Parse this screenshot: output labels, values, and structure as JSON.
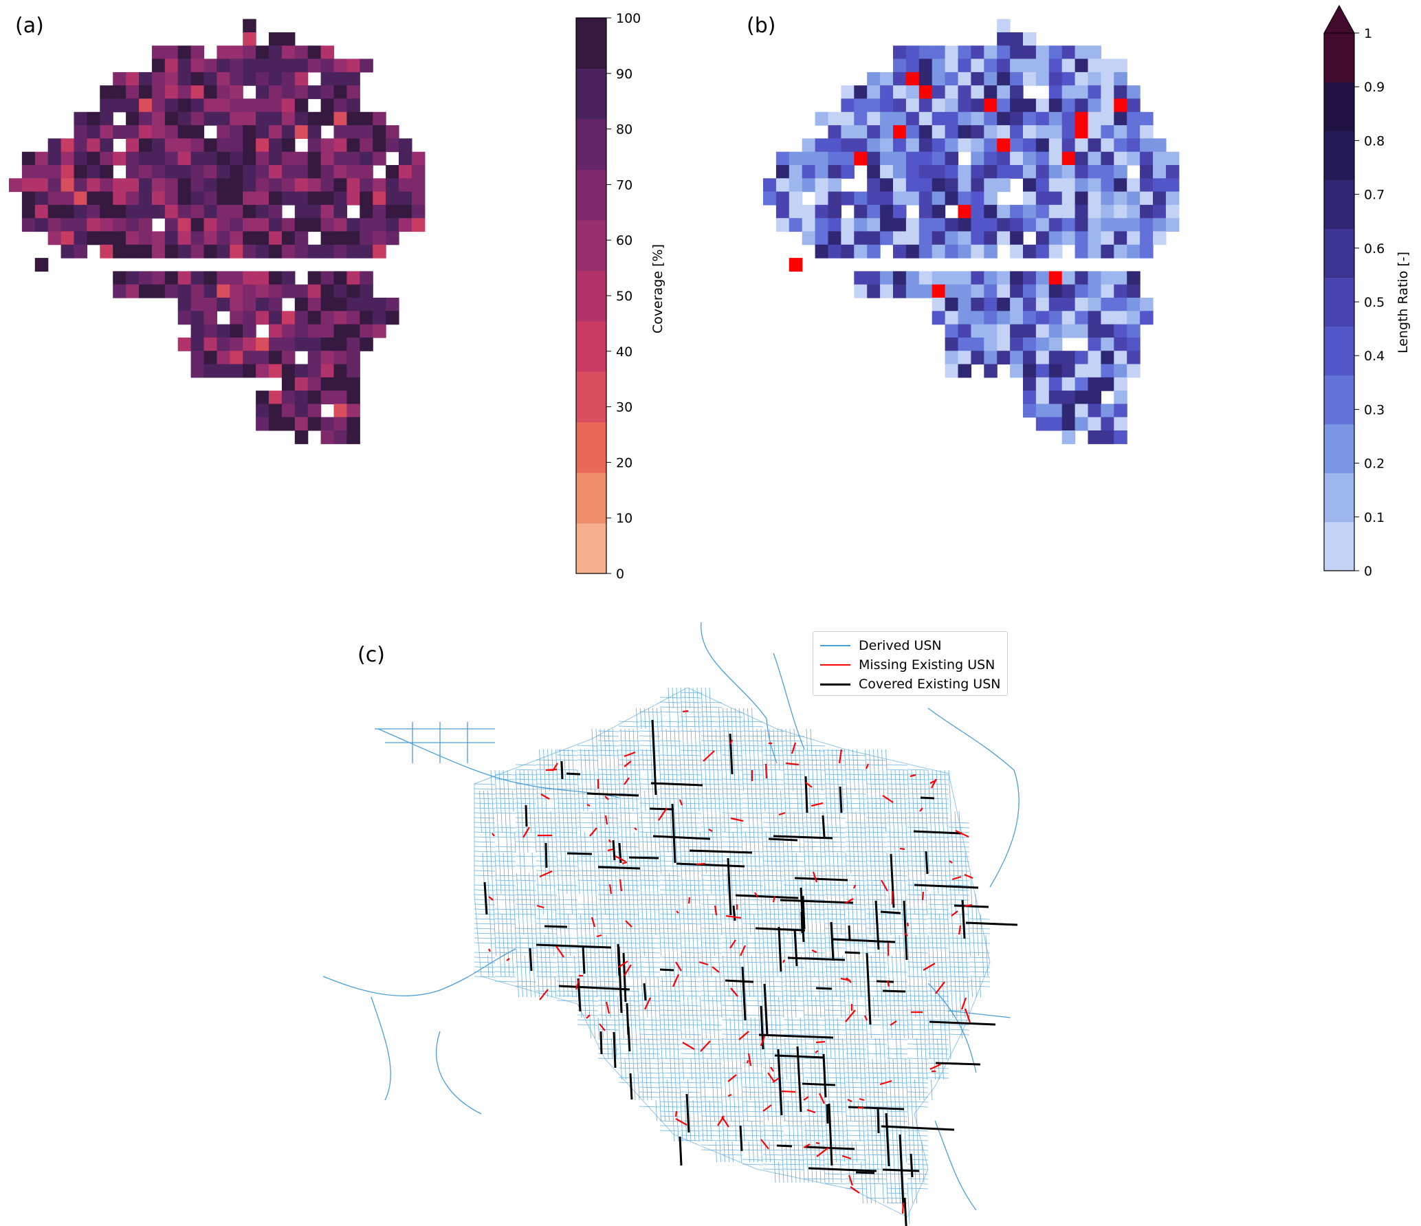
{
  "panels": {
    "a": {
      "label": "(a)"
    },
    "b": {
      "label": "(b)"
    },
    "c": {
      "label": "(c)"
    }
  },
  "chart_data": [
    {
      "type": "heatmap",
      "panel": "(a)",
      "colorbar": {
        "label": "Coverage [%]",
        "range": [
          0,
          100
        ],
        "ticks": [
          "0",
          "10",
          "20",
          "30",
          "40",
          "50",
          "60",
          "70",
          "80",
          "90",
          "100"
        ],
        "colors": [
          "#f4b08e",
          "#ef8c6c",
          "#e8685a",
          "#d94e5c",
          "#c83b63",
          "#b13369",
          "#972e6d",
          "#7d296c",
          "#642667",
          "#4a225c",
          "#35193e"
        ]
      },
      "grid": {
        "cols": 32,
        "rows": 32,
        "note": "each non-white cell is a coverage value in percent"
      }
    },
    {
      "type": "heatmap",
      "panel": "(b)",
      "colorbar": {
        "label": "Length Ratio [-]",
        "range": [
          0,
          1
        ],
        "extend": "max",
        "ticks": [
          "0",
          "0.1",
          "0.2",
          "0.3",
          "0.4",
          "0.5",
          "0.6",
          "0.7",
          "0.8",
          "0.9",
          "1"
        ],
        "colors": [
          "#c4d3f5",
          "#9eb6ee",
          "#7b96e3",
          "#6272d9",
          "#5256c9",
          "#4a44b0",
          "#3e3592",
          "#2f2773",
          "#241b56",
          "#1f1240",
          "#420a2c"
        ],
        "overflow_color": "#ff0000"
      },
      "grid": {
        "cols": 32,
        "rows": 32
      }
    },
    {
      "type": "network-map",
      "panel": "(c)",
      "legend": [
        {
          "label": "Derived USN",
          "color": "#4a9fd8"
        },
        {
          "label": "Missing Existing USN",
          "color": "#ff0000"
        },
        {
          "label": "Covered Existing USN",
          "color": "#000000"
        }
      ]
    }
  ]
}
